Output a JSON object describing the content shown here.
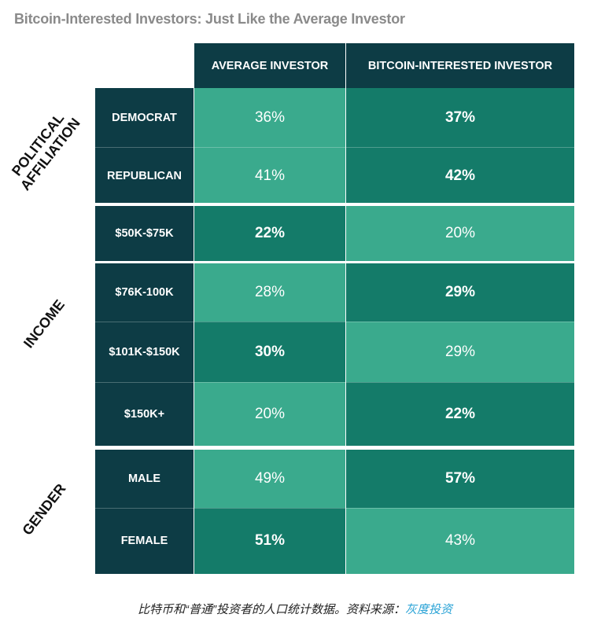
{
  "title": "Bitcoin-Interested Investors: Just Like the Average Investor",
  "columns": [
    "AVERAGE INVESTOR",
    "BITCOIN-INTERESTED INVESTOR"
  ],
  "groups": [
    {
      "label_lines": [
        "POLITICAL",
        "AFFILIATION"
      ]
    },
    {
      "label_lines": [
        "INCOME"
      ]
    },
    {
      "label_lines": [
        "GENDER"
      ]
    }
  ],
  "rows": [
    {
      "label": "DEMOCRAT",
      "avg": "36%",
      "btc": "37%"
    },
    {
      "label": "REPUBLICAN",
      "avg": "41%",
      "btc": "42%"
    },
    {
      "label": "$50K-$75K",
      "avg": "22%",
      "btc": "20%"
    },
    {
      "label": "$76K-100K",
      "avg": "28%",
      "btc": "29%"
    },
    {
      "label": "$101K-$150K",
      "avg": "30%",
      "btc": "29%"
    },
    {
      "label": "$150K+",
      "avg": "20%",
      "btc": "22%"
    },
    {
      "label": "MALE",
      "avg": "49%",
      "btc": "57%"
    },
    {
      "label": "FEMALE",
      "avg": "51%",
      "btc": "43%"
    }
  ],
  "footer": {
    "text": "比特币和“普通”投资者的人口统计数据。资料来源：",
    "source": "灰度投资"
  },
  "colors": {
    "header": "#0d3c45",
    "cell_light": "#3aaa8d",
    "cell_dark": "#147b69",
    "title": "#8a8a8a",
    "link": "#2aa3d6"
  },
  "chart_data": {
    "type": "table",
    "title": "Bitcoin-Interested Investors: Just Like the Average Investor",
    "columns": [
      "AVERAGE INVESTOR",
      "BITCOIN-INTERESTED INVESTOR"
    ],
    "row_groups": [
      {
        "group": "POLITICAL AFFILIATION",
        "rows": [
          "DEMOCRAT",
          "REPUBLICAN"
        ]
      },
      {
        "group": "INCOME",
        "rows": [
          "$50K-$75K",
          "$76K-100K",
          "$101K-$150K",
          "$150K+"
        ]
      },
      {
        "group": "GENDER",
        "rows": [
          "MALE",
          "FEMALE"
        ]
      }
    ],
    "series": [
      {
        "name": "AVERAGE INVESTOR",
        "values": [
          36,
          41,
          22,
          28,
          30,
          20,
          49,
          51
        ]
      },
      {
        "name": "BITCOIN-INTERESTED INVESTOR",
        "values": [
          37,
          42,
          20,
          29,
          29,
          22,
          57,
          43
        ]
      }
    ],
    "unit": "%"
  }
}
